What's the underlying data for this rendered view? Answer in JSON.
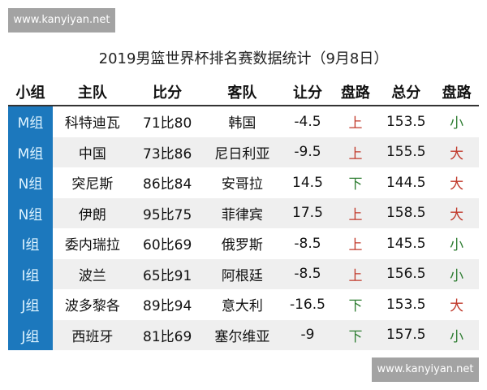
{
  "watermark": "www.kanyiyan.net",
  "title": "2019男篮世界杯排名赛数据统计（9月8日）",
  "headers": [
    "小组",
    "主队",
    "比分",
    "客队",
    "让分",
    "盘路",
    "总分",
    "盘路"
  ],
  "colors": {
    "group_bg": "#1c78bd",
    "up": "#c0392b",
    "down": "#2e7d32"
  },
  "rows": [
    {
      "group": "M组",
      "home": "科特迪瓦",
      "score": "71比80",
      "away": "韩国",
      "handicap": "-4.5",
      "pan": "上",
      "total": "153.5",
      "ou": "小"
    },
    {
      "group": "M组",
      "home": "中国",
      "score": "73比86",
      "away": "尼日利亚",
      "handicap": "-9.5",
      "pan": "上",
      "total": "155.5",
      "ou": "大"
    },
    {
      "group": "N组",
      "home": "突尼斯",
      "score": "86比84",
      "away": "安哥拉",
      "handicap": "14.5",
      "pan": "下",
      "total": "144.5",
      "ou": "大"
    },
    {
      "group": "N组",
      "home": "伊朗",
      "score": "95比75",
      "away": "菲律宾",
      "handicap": "17.5",
      "pan": "上",
      "total": "158.5",
      "ou": "大"
    },
    {
      "group": "I组",
      "home": "委内瑞拉",
      "score": "60比69",
      "away": "俄罗斯",
      "handicap": "-8.5",
      "pan": "上",
      "total": "145.5",
      "ou": "小"
    },
    {
      "group": "I组",
      "home": "波兰",
      "score": "65比91",
      "away": "阿根廷",
      "handicap": "-8.5",
      "pan": "上",
      "total": "156.5",
      "ou": "小"
    },
    {
      "group": "J组",
      "home": "波多黎各",
      "score": "89比94",
      "away": "意大利",
      "handicap": "-16.5",
      "pan": "下",
      "total": "153.5",
      "ou": "大"
    },
    {
      "group": "J组",
      "home": "西班牙",
      "score": "81比69",
      "away": "塞尔维亚",
      "handicap": "-9",
      "pan": "下",
      "total": "157.5",
      "ou": "小"
    }
  ]
}
